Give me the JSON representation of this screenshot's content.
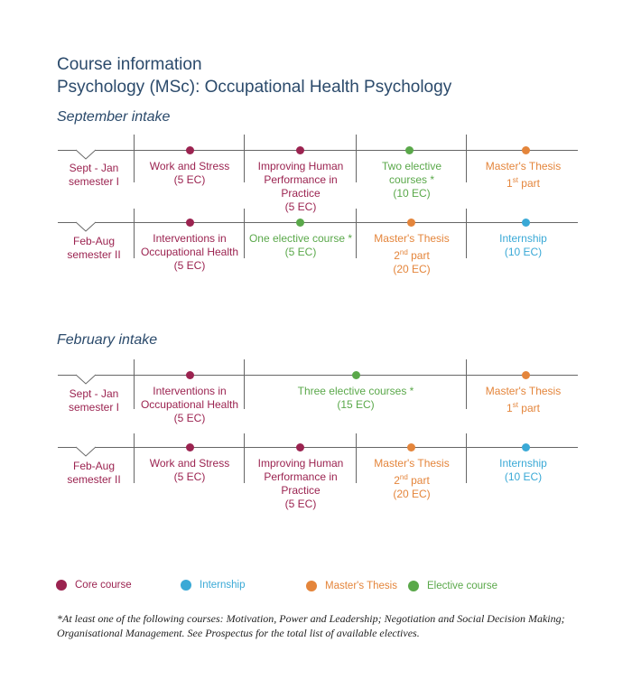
{
  "header": {
    "title_line1": "Course information",
    "title_line2": "Psychology (MSc): Occupational Health Psychology"
  },
  "colors": {
    "core": "#9b2350",
    "elective": "#5aa84a",
    "thesis": "#e4853b",
    "internship": "#3aa9d6"
  },
  "september": {
    "label": "September intake",
    "row1": {
      "sem_line1": "Sept - Jan",
      "sem_line2": "semester I",
      "c1": [
        "Work and Stress",
        "(5 EC)"
      ],
      "c2": [
        "Improving Human",
        "Performance in",
        "Practice",
        "(5 EC)"
      ],
      "c3": [
        "Two elective",
        "courses *",
        "(10 EC)"
      ],
      "c4": [
        "Master's Thesis",
        "1",
        "st",
        " part"
      ]
    },
    "row2": {
      "sem_line1": "Feb-Aug",
      "sem_line2": "semester II",
      "c1": [
        "Interventions in",
        "Occupational Health",
        "(5 EC)"
      ],
      "c2": [
        "One elective course *",
        "(5 EC)"
      ],
      "c3": [
        "Master's Thesis",
        "2",
        "nd",
        " part",
        "(20 EC)"
      ],
      "c4": [
        "Internship",
        "(10 EC)"
      ]
    }
  },
  "february": {
    "label": "February intake",
    "row1": {
      "sem_line1": "Sept - Jan",
      "sem_line2": "semester I",
      "c1": [
        "Interventions in",
        "Occupational Health",
        "(5 EC)"
      ],
      "c2": [
        "Three elective courses *",
        "(15 EC)"
      ],
      "c3": [
        "Master's Thesis",
        "1",
        "st",
        " part"
      ]
    },
    "row2": {
      "sem_line1": "Feb-Aug",
      "sem_line2": "semester II",
      "c1": [
        "Work and Stress",
        "(5 EC)"
      ],
      "c2": [
        "Improving Human",
        "Performance in",
        "Practice",
        "(5 EC)"
      ],
      "c3": [
        "Master's Thesis",
        "2",
        "nd",
        " part",
        "(20 EC)"
      ],
      "c4": [
        "Internship",
        "(10 EC)"
      ]
    }
  },
  "legend": {
    "core": "Core course",
    "internship": "Internship",
    "thesis": "Master's Thesis",
    "elective": "Elective course"
  },
  "footnote": "*At least one of the following courses: Motivation, Power and Leadership; Negotiation and Social Decision Making; Organisational Management. See Prospectus for the total list of available electives."
}
